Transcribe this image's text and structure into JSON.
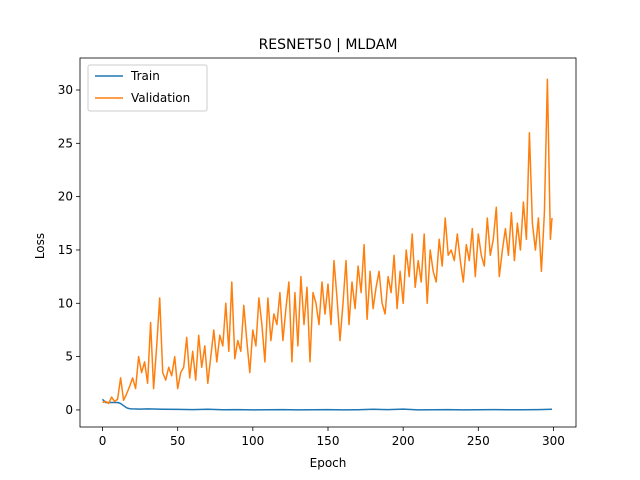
{
  "chart_data": {
    "type": "line",
    "title": "RESNET50 | MLDAM",
    "xlabel": "Epoch",
    "ylabel": "Loss",
    "xlim": [
      -15,
      315
    ],
    "ylim": [
      -1.6,
      33
    ],
    "xticks": [
      0,
      50,
      100,
      150,
      200,
      250,
      300
    ],
    "yticks": [
      0,
      5,
      10,
      15,
      20,
      25,
      30
    ],
    "legend_position": "top-left",
    "grid": false,
    "series": [
      {
        "name": "Train",
        "color": "#1f77b4",
        "x": [
          0,
          2,
          5,
          8,
          10,
          12,
          14,
          16,
          18,
          20,
          25,
          30,
          40,
          50,
          60,
          70,
          80,
          90,
          100,
          110,
          120,
          130,
          140,
          150,
          160,
          170,
          180,
          190,
          200,
          210,
          220,
          230,
          240,
          250,
          260,
          270,
          280,
          290,
          299
        ],
        "values": [
          1.0,
          0.7,
          0.7,
          0.7,
          0.7,
          0.6,
          0.4,
          0.2,
          0.12,
          0.1,
          0.08,
          0.1,
          0.06,
          0.05,
          0.03,
          0.06,
          0.02,
          0.03,
          0.0,
          0.02,
          0.03,
          0.0,
          0.02,
          0.03,
          0.0,
          0.02,
          0.06,
          0.03,
          0.08,
          0.0,
          0.02,
          0.03,
          0.0,
          0.02,
          0.03,
          0.01,
          0.02,
          0.03,
          0.06
        ]
      },
      {
        "name": "Validation",
        "color": "#ff7f0e",
        "x": [
          0,
          2,
          4,
          6,
          8,
          10,
          12,
          14,
          16,
          18,
          20,
          22,
          24,
          26,
          28,
          30,
          32,
          34,
          36,
          38,
          40,
          42,
          44,
          46,
          48,
          50,
          52,
          54,
          56,
          58,
          60,
          62,
          64,
          66,
          68,
          70,
          72,
          74,
          76,
          78,
          80,
          82,
          84,
          86,
          88,
          90,
          92,
          94,
          96,
          98,
          100,
          102,
          104,
          106,
          108,
          110,
          112,
          114,
          116,
          118,
          120,
          122,
          124,
          126,
          128,
          130,
          132,
          134,
          136,
          138,
          140,
          142,
          144,
          146,
          148,
          150,
          152,
          154,
          156,
          158,
          160,
          162,
          164,
          166,
          168,
          170,
          172,
          174,
          176,
          178,
          180,
          182,
          184,
          186,
          188,
          190,
          192,
          194,
          196,
          198,
          200,
          202,
          204,
          206,
          208,
          210,
          212,
          214,
          216,
          218,
          220,
          222,
          224,
          226,
          228,
          230,
          232,
          234,
          236,
          238,
          240,
          242,
          244,
          246,
          248,
          250,
          252,
          254,
          256,
          258,
          260,
          262,
          264,
          266,
          268,
          270,
          272,
          274,
          276,
          278,
          280,
          282,
          284,
          286,
          288,
          290,
          292,
          294,
          296,
          298,
          299
        ],
        "values": [
          0.7,
          0.8,
          0.6,
          1.2,
          0.8,
          1.0,
          3.0,
          0.9,
          1.5,
          2.2,
          3.0,
          2.0,
          5.0,
          3.5,
          4.5,
          2.5,
          8.2,
          2.0,
          6.0,
          10.5,
          3.5,
          2.8,
          4.0,
          3.2,
          5.0,
          2.0,
          3.5,
          4.0,
          6.8,
          3.0,
          5.5,
          2.8,
          7.0,
          4.0,
          6.0,
          2.5,
          5.0,
          7.5,
          4.5,
          7.0,
          6.0,
          10.0,
          5.5,
          12.0,
          4.8,
          6.5,
          5.5,
          9.8,
          6.5,
          3.5,
          7.5,
          6.0,
          10.5,
          8.0,
          4.5,
          10.5,
          6.5,
          9.0,
          8.0,
          11.0,
          6.5,
          9.5,
          12.0,
          4.5,
          11.0,
          6.0,
          12.5,
          8.0,
          11.5,
          4.5,
          11.0,
          10.0,
          8.0,
          12.0,
          9.0,
          11.8,
          8.0,
          14.0,
          10.5,
          6.5,
          10.0,
          14.0,
          8.0,
          12.0,
          9.5,
          13.5,
          11.0,
          15.5,
          8.5,
          13.0,
          9.5,
          11.5,
          13.0,
          10.0,
          9.0,
          12.5,
          11.0,
          14.5,
          9.5,
          13.0,
          10.0,
          15.0,
          12.5,
          16.5,
          11.5,
          14.0,
          12.0,
          16.5,
          10.0,
          15.0,
          13.0,
          12.0,
          16.0,
          13.5,
          18.0,
          14.5,
          15.0,
          14.0,
          16.5,
          14.0,
          12.0,
          15.5,
          14.0,
          17.0,
          12.5,
          16.5,
          14.5,
          13.5,
          18.0,
          14.5,
          16.0,
          19.0,
          12.5,
          15.0,
          17.0,
          14.5,
          18.5,
          14.0,
          17.5,
          15.0,
          19.5,
          16.0,
          26.0,
          17.5,
          15.0,
          18.0,
          13.0,
          18.5,
          31.0,
          16.0,
          18.0
        ]
      }
    ]
  }
}
